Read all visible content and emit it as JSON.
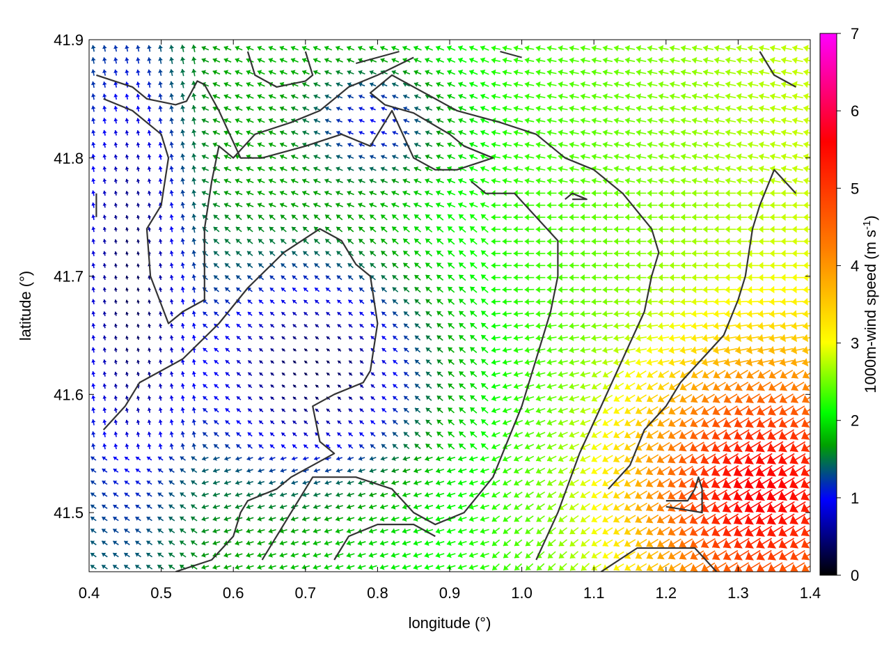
{
  "chart_data": {
    "type": "vector-field",
    "xlabel": "longitude (°)",
    "ylabel": "latitude (°)",
    "xlim": [
      0.4,
      1.4
    ],
    "ylim": [
      41.45,
      41.9
    ],
    "x_ticks": [
      "0.4",
      "0.5",
      "0.6",
      "0.7",
      "0.8",
      "0.9",
      "1.0",
      "1.1",
      "1.2",
      "1.3",
      "1.4"
    ],
    "y_ticks": [
      "41.5",
      "41.6",
      "41.7",
      "41.8",
      "41.9"
    ],
    "colorbar": {
      "label": "1000m-wind speed (m s",
      "label_sup": "-1",
      "label_end": ")",
      "range": [
        0,
        7
      ],
      "ticks": [
        "0",
        "1",
        "2",
        "3",
        "4",
        "5",
        "6",
        "7"
      ],
      "palette": [
        "#000000",
        "#0000ff",
        "#00a000",
        "#00ff00",
        "#ffff00",
        "#ff8000",
        "#ff0000",
        "#ff00ff"
      ]
    },
    "contour_color": "#333333",
    "contours": [
      [
        [
          0.41,
          41.87
        ],
        [
          0.46,
          41.86
        ],
        [
          0.48,
          41.85
        ],
        [
          0.52,
          41.845
        ],
        [
          0.535,
          41.848
        ],
        [
          0.55,
          41.865
        ],
        [
          0.56,
          41.862
        ],
        [
          0.58,
          41.84
        ],
        [
          0.61,
          41.8
        ],
        [
          0.64,
          41.8
        ],
        [
          0.7,
          41.81
        ],
        [
          0.75,
          41.82
        ],
        [
          0.79,
          41.81
        ],
        [
          0.82,
          41.84
        ],
        [
          0.85,
          41.8
        ],
        [
          0.88,
          41.79
        ],
        [
          0.91,
          41.79
        ],
        [
          0.96,
          41.8
        ],
        [
          0.92,
          41.81
        ],
        [
          0.9,
          41.82
        ],
        [
          0.85,
          41.838
        ],
        [
          0.81,
          41.845
        ],
        [
          0.79,
          41.855
        ],
        [
          0.82,
          41.87
        ],
        [
          0.88,
          41.85
        ],
        [
          0.91,
          41.84
        ],
        [
          0.97,
          41.83
        ],
        [
          1.02,
          41.82
        ],
        [
          1.06,
          41.8
        ],
        [
          1.1,
          41.79
        ],
        [
          1.14,
          41.77
        ],
        [
          1.18,
          41.74
        ],
        [
          1.19,
          41.72
        ],
        [
          1.18,
          41.7
        ],
        [
          1.17,
          41.67
        ],
        [
          1.14,
          41.63
        ],
        [
          1.11,
          41.59
        ],
        [
          1.08,
          41.55
        ],
        [
          1.05,
          41.5
        ],
        [
          1.02,
          41.46
        ]
      ],
      [
        [
          0.42,
          41.85
        ],
        [
          0.46,
          41.84
        ],
        [
          0.5,
          41.82
        ],
        [
          0.51,
          41.8
        ],
        [
          0.5,
          41.76
        ],
        [
          0.48,
          41.74
        ],
        [
          0.485,
          41.7
        ],
        [
          0.51,
          41.66
        ],
        [
          0.53,
          41.67
        ],
        [
          0.56,
          41.68
        ],
        [
          0.56,
          41.7
        ],
        [
          0.56,
          41.74
        ],
        [
          0.57,
          41.78
        ],
        [
          0.58,
          41.81
        ],
        [
          0.6,
          41.8
        ],
        [
          0.63,
          41.82
        ],
        [
          0.68,
          41.83
        ],
        [
          0.72,
          41.84
        ],
        [
          0.76,
          41.86
        ],
        [
          0.8,
          41.87
        ],
        [
          0.85,
          41.885
        ]
      ],
      [
        [
          0.62,
          41.89
        ],
        [
          0.63,
          41.87
        ],
        [
          0.66,
          41.86
        ],
        [
          0.7,
          41.865
        ],
        [
          0.71,
          41.87
        ],
        [
          0.7,
          41.89
        ]
      ],
      [
        [
          0.42,
          41.57
        ],
        [
          0.45,
          41.59
        ],
        [
          0.47,
          41.61
        ],
        [
          0.53,
          41.63
        ],
        [
          0.58,
          41.66
        ],
        [
          0.62,
          41.69
        ],
        [
          0.67,
          41.72
        ],
        [
          0.72,
          41.74
        ],
        [
          0.75,
          41.73
        ],
        [
          0.77,
          41.71
        ],
        [
          0.79,
          41.7
        ],
        [
          0.8,
          41.66
        ],
        [
          0.79,
          41.62
        ],
        [
          0.78,
          41.61
        ],
        [
          0.74,
          41.6
        ],
        [
          0.71,
          41.59
        ],
        [
          0.72,
          41.56
        ],
        [
          0.74,
          41.55
        ],
        [
          0.71,
          41.54
        ],
        [
          0.68,
          41.53
        ],
        [
          0.66,
          41.52
        ],
        [
          0.62,
          41.51
        ],
        [
          0.61,
          41.5
        ],
        [
          0.6,
          41.48
        ],
        [
          0.57,
          41.46
        ],
        [
          0.52,
          41.45
        ]
      ],
      [
        [
          0.64,
          41.46
        ],
        [
          0.68,
          41.5
        ],
        [
          0.71,
          41.53
        ],
        [
          0.77,
          41.53
        ],
        [
          0.82,
          41.52
        ],
        [
          0.85,
          41.5
        ],
        [
          0.88,
          41.49
        ],
        [
          0.92,
          41.5
        ],
        [
          0.96,
          41.53
        ],
        [
          0.98,
          41.56
        ],
        [
          1.0,
          41.59
        ],
        [
          1.02,
          41.63
        ],
        [
          1.04,
          41.67
        ],
        [
          1.05,
          41.7
        ],
        [
          1.05,
          41.73
        ],
        [
          1.02,
          41.75
        ],
        [
          0.99,
          41.77
        ],
        [
          0.95,
          41.77
        ],
        [
          0.93,
          41.78
        ]
      ],
      [
        [
          0.74,
          41.46
        ],
        [
          0.76,
          41.48
        ],
        [
          0.8,
          41.49
        ],
        [
          0.85,
          41.49
        ],
        [
          0.88,
          41.48
        ]
      ],
      [
        [
          1.11,
          41.45
        ],
        [
          1.16,
          41.47
        ],
        [
          1.22,
          41.47
        ],
        [
          1.24,
          41.47
        ],
        [
          1.27,
          41.45
        ]
      ],
      [
        [
          1.2,
          41.51
        ],
        [
          1.23,
          41.51
        ],
        [
          1.24,
          41.52
        ],
        [
          1.245,
          41.53
        ],
        [
          1.25,
          41.52
        ],
        [
          1.25,
          41.5
        ],
        [
          1.2,
          41.505
        ]
      ],
      [
        [
          1.38,
          41.77
        ],
        [
          1.35,
          41.79
        ],
        [
          1.33,
          41.76
        ],
        [
          1.32,
          41.74
        ],
        [
          1.315,
          41.72
        ],
        [
          1.31,
          41.7
        ],
        [
          1.3,
          41.68
        ],
        [
          1.28,
          41.65
        ],
        [
          1.25,
          41.63
        ],
        [
          1.22,
          41.61
        ],
        [
          1.2,
          41.59
        ],
        [
          1.17,
          41.57
        ],
        [
          1.15,
          41.54
        ],
        [
          1.12,
          41.52
        ]
      ],
      [
        [
          1.38,
          41.86
        ],
        [
          1.35,
          41.87
        ],
        [
          1.34,
          41.88
        ],
        [
          1.33,
          41.89
        ]
      ],
      [
        [
          0.41,
          41.77
        ],
        [
          0.41,
          41.75
        ]
      ],
      [
        [
          1.06,
          41.765
        ],
        [
          1.07,
          41.77
        ],
        [
          1.09,
          41.765
        ],
        [
          1.07,
          41.765
        ]
      ],
      [
        [
          0.97,
          41.89
        ],
        [
          1.0,
          41.885
        ]
      ],
      [
        [
          0.77,
          41.88
        ],
        [
          0.8,
          41.885
        ],
        [
          0.83,
          41.89
        ]
      ]
    ]
  }
}
